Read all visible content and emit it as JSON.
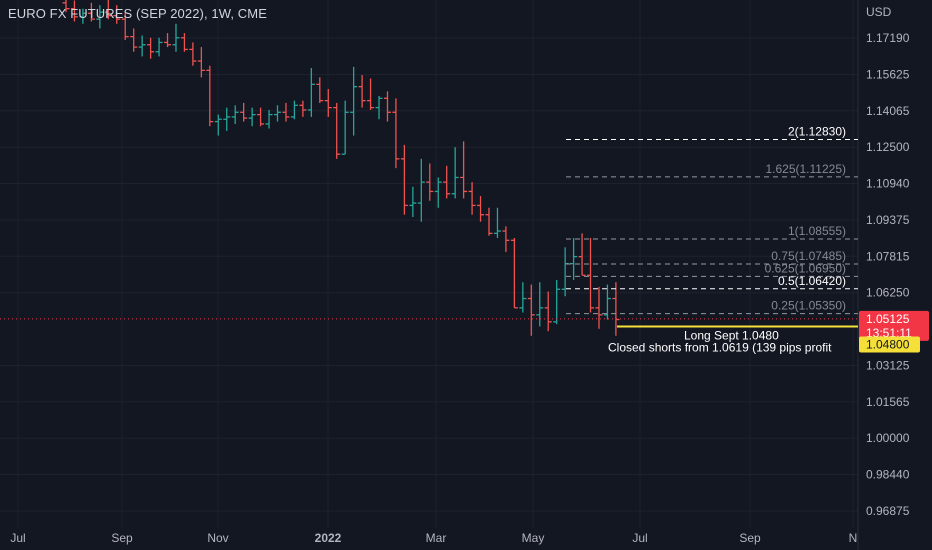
{
  "chart_title": "EURO FX FUTURES (SEP 2022), 1W, CME",
  "colors": {
    "background": "#131722",
    "grid": "#1e222d",
    "up": "#26a69a",
    "down": "#ef5350",
    "axis_text": "#b2b5be",
    "fib_line": "#9598a1",
    "fib_highlight": "#ffffff",
    "last_price": "#f23645",
    "annotation_line": "#f5e03a"
  },
  "chart_data": {
    "type": "ohlc",
    "title": "EURO FX FUTURES (SEP 2022), 1W, CME",
    "y_axis": {
      "unit_label": "USD",
      "ticks": [
        "1.17190",
        "1.15625",
        "1.14065",
        "1.12500",
        "1.10940",
        "1.09375",
        "1.07815",
        "1.06250",
        "1.03125",
        "1.01565",
        "1.00000",
        "0.98440",
        "0.96875"
      ],
      "range": [
        0.958,
        1.189
      ]
    },
    "x_axis": {
      "ticks": [
        "Jul",
        "Sep",
        "Nov",
        "2022",
        "Mar",
        "May",
        "Jul",
        "Sep",
        "N"
      ]
    },
    "bars": [
      {
        "o": 1.187,
        "h": 1.189,
        "l": 1.183,
        "c": 1.1845
      },
      {
        "o": 1.1845,
        "h": 1.188,
        "l": 1.179,
        "c": 1.181
      },
      {
        "o": 1.181,
        "h": 1.1845,
        "l": 1.178,
        "c": 1.1825
      },
      {
        "o": 1.1825,
        "h": 1.187,
        "l": 1.179,
        "c": 1.18
      },
      {
        "o": 1.18,
        "h": 1.186,
        "l": 1.176,
        "c": 1.183
      },
      {
        "o": 1.183,
        "h": 1.189,
        "l": 1.18,
        "c": 1.1815
      },
      {
        "o": 1.1815,
        "h": 1.186,
        "l": 1.178,
        "c": 1.18
      },
      {
        "o": 1.18,
        "h": 1.183,
        "l": 1.171,
        "c": 1.1725
      },
      {
        "o": 1.1725,
        "h": 1.176,
        "l": 1.166,
        "c": 1.168
      },
      {
        "o": 1.168,
        "h": 1.173,
        "l": 1.164,
        "c": 1.169
      },
      {
        "o": 1.169,
        "h": 1.172,
        "l": 1.163,
        "c": 1.166
      },
      {
        "o": 1.166,
        "h": 1.172,
        "l": 1.164,
        "c": 1.17
      },
      {
        "o": 1.17,
        "h": 1.174,
        "l": 1.168,
        "c": 1.169
      },
      {
        "o": 1.169,
        "h": 1.178,
        "l": 1.166,
        "c": 1.172
      },
      {
        "o": 1.172,
        "h": 1.174,
        "l": 1.166,
        "c": 1.167
      },
      {
        "o": 1.167,
        "h": 1.17,
        "l": 1.16,
        "c": 1.162
      },
      {
        "o": 1.162,
        "h": 1.168,
        "l": 1.155,
        "c": 1.158
      },
      {
        "o": 1.158,
        "h": 1.16,
        "l": 1.134,
        "c": 1.136
      },
      {
        "o": 1.136,
        "h": 1.139,
        "l": 1.13,
        "c": 1.137
      },
      {
        "o": 1.137,
        "h": 1.142,
        "l": 1.132,
        "c": 1.138
      },
      {
        "o": 1.138,
        "h": 1.143,
        "l": 1.135,
        "c": 1.14
      },
      {
        "o": 1.14,
        "h": 1.144,
        "l": 1.136,
        "c": 1.1375
      },
      {
        "o": 1.1375,
        "h": 1.142,
        "l": 1.134,
        "c": 1.139
      },
      {
        "o": 1.139,
        "h": 1.142,
        "l": 1.134,
        "c": 1.135
      },
      {
        "o": 1.135,
        "h": 1.141,
        "l": 1.133,
        "c": 1.139
      },
      {
        "o": 1.139,
        "h": 1.143,
        "l": 1.136,
        "c": 1.14
      },
      {
        "o": 1.14,
        "h": 1.144,
        "l": 1.136,
        "c": 1.138
      },
      {
        "o": 1.138,
        "h": 1.145,
        "l": 1.137,
        "c": 1.143
      },
      {
        "o": 1.143,
        "h": 1.145,
        "l": 1.138,
        "c": 1.141
      },
      {
        "o": 1.141,
        "h": 1.159,
        "l": 1.138,
        "c": 1.152
      },
      {
        "o": 1.152,
        "h": 1.155,
        "l": 1.144,
        "c": 1.145
      },
      {
        "o": 1.145,
        "h": 1.15,
        "l": 1.138,
        "c": 1.142
      },
      {
        "o": 1.142,
        "h": 1.144,
        "l": 1.12,
        "c": 1.122
      },
      {
        "o": 1.122,
        "h": 1.145,
        "l": 1.122,
        "c": 1.14
      },
      {
        "o": 1.14,
        "h": 1.1595,
        "l": 1.13,
        "c": 1.151
      },
      {
        "o": 1.151,
        "h": 1.156,
        "l": 1.142,
        "c": 1.145
      },
      {
        "o": 1.145,
        "h": 1.1545,
        "l": 1.141,
        "c": 1.142
      },
      {
        "o": 1.142,
        "h": 1.147,
        "l": 1.137,
        "c": 1.146
      },
      {
        "o": 1.146,
        "h": 1.149,
        "l": 1.136,
        "c": 1.14
      },
      {
        "o": 1.14,
        "h": 1.146,
        "l": 1.116,
        "c": 1.12
      },
      {
        "o": 1.12,
        "h": 1.126,
        "l": 1.096,
        "c": 1.1
      },
      {
        "o": 1.1,
        "h": 1.108,
        "l": 1.095,
        "c": 1.101
      },
      {
        "o": 1.101,
        "h": 1.12,
        "l": 1.093,
        "c": 1.11
      },
      {
        "o": 1.11,
        "h": 1.118,
        "l": 1.102,
        "c": 1.106
      },
      {
        "o": 1.106,
        "h": 1.112,
        "l": 1.099,
        "c": 1.11
      },
      {
        "o": 1.11,
        "h": 1.117,
        "l": 1.103,
        "c": 1.105
      },
      {
        "o": 1.105,
        "h": 1.125,
        "l": 1.103,
        "c": 1.112
      },
      {
        "o": 1.112,
        "h": 1.1275,
        "l": 1.103,
        "c": 1.106
      },
      {
        "o": 1.106,
        "h": 1.11,
        "l": 1.096,
        "c": 1.1
      },
      {
        "o": 1.1,
        "h": 1.104,
        "l": 1.093,
        "c": 1.096
      },
      {
        "o": 1.096,
        "h": 1.099,
        "l": 1.087,
        "c": 1.088
      },
      {
        "o": 1.088,
        "h": 1.099,
        "l": 1.086,
        "c": 1.089
      },
      {
        "o": 1.089,
        "h": 1.091,
        "l": 1.08,
        "c": 1.085
      },
      {
        "o": 1.085,
        "h": 1.086,
        "l": 1.056,
        "c": 1.056
      },
      {
        "o": 1.056,
        "h": 1.067,
        "l": 1.054,
        "c": 1.06
      },
      {
        "o": 1.06,
        "h": 1.066,
        "l": 1.044,
        "c": 1.053
      },
      {
        "o": 1.053,
        "h": 1.067,
        "l": 1.048,
        "c": 1.056
      },
      {
        "o": 1.056,
        "h": 1.063,
        "l": 1.046,
        "c": 1.05
      },
      {
        "o": 1.05,
        "h": 1.068,
        "l": 1.049,
        "c": 1.064
      },
      {
        "o": 1.064,
        "h": 1.082,
        "l": 1.061,
        "c": 1.075
      },
      {
        "o": 1.075,
        "h": 1.086,
        "l": 1.068,
        "c": 1.078
      },
      {
        "o": 1.078,
        "h": 1.088,
        "l": 1.07,
        "c": 1.07
      },
      {
        "o": 1.07,
        "h": 1.086,
        "l": 1.054,
        "c": 1.056
      },
      {
        "o": 1.056,
        "h": 1.065,
        "l": 1.047,
        "c": 1.053
      },
      {
        "o": 1.053,
        "h": 1.066,
        "l": 1.051,
        "c": 1.06
      },
      {
        "o": 1.06,
        "h": 1.067,
        "l": 1.044,
        "c": 1.051
      }
    ],
    "fib_levels": [
      {
        "label": "2(1.12830)",
        "value": 1.1283,
        "highlight": true
      },
      {
        "label": "1.625(1.11225)",
        "value": 1.11225,
        "highlight": false
      },
      {
        "label": "1(1.08555)",
        "value": 1.08555,
        "highlight": false
      },
      {
        "label": "0.75(1.07485)",
        "value": 1.07485,
        "highlight": false
      },
      {
        "label": "0.625(1.06950)",
        "value": 1.0695,
        "highlight": false
      },
      {
        "label": "0.5(1.06420)",
        "value": 1.0642,
        "highlight": true
      },
      {
        "label": "0.25(1.05350)",
        "value": 1.0535,
        "highlight": false
      }
    ],
    "last_price": {
      "value": 1.05125,
      "label": "1.05125",
      "countdown": "13:51:11"
    },
    "entry_price": {
      "value": 1.048,
      "label": "1.04800"
    },
    "annotations": [
      "Long Sept 1.0480",
      "Closed shorts from 1.0619 (139 pips profit"
    ]
  }
}
